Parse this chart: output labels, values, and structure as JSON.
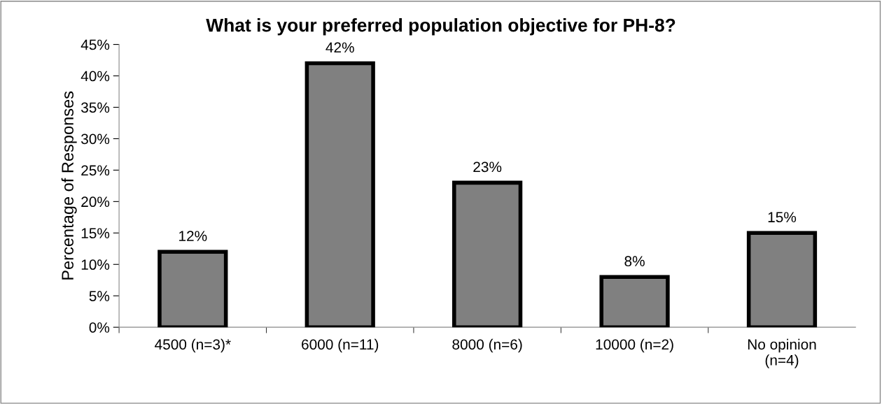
{
  "chart_data": {
    "type": "bar",
    "title": "What is your preferred population objective for PH-8?",
    "ylabel": "Percentage of Responses",
    "categories": [
      "4500 (n=3)*",
      "6000 (n=11)",
      "8000 (n=6)",
      "10000 (n=2)",
      "No opinion\n(n=4)"
    ],
    "values": [
      12,
      42,
      23,
      8,
      15
    ],
    "color": "#808080",
    "data_labels": true,
    "value_labels": [
      "12%",
      "42%",
      "23%",
      "8%",
      "15%"
    ],
    "ylim": [
      0,
      45
    ],
    "yticks": [
      {
        "value": 0,
        "label": "0%"
      },
      {
        "value": 5,
        "label": "5%"
      },
      {
        "value": 10,
        "label": "10%"
      },
      {
        "value": 15,
        "label": "15%"
      },
      {
        "value": 20,
        "label": "20%"
      },
      {
        "value": 25,
        "label": "25%"
      },
      {
        "value": 30,
        "label": "30%"
      },
      {
        "value": 35,
        "label": "35%"
      },
      {
        "value": 40,
        "label": "40%"
      },
      {
        "value": 45,
        "label": "45%"
      }
    ],
    "grid": false,
    "legend": false
  }
}
